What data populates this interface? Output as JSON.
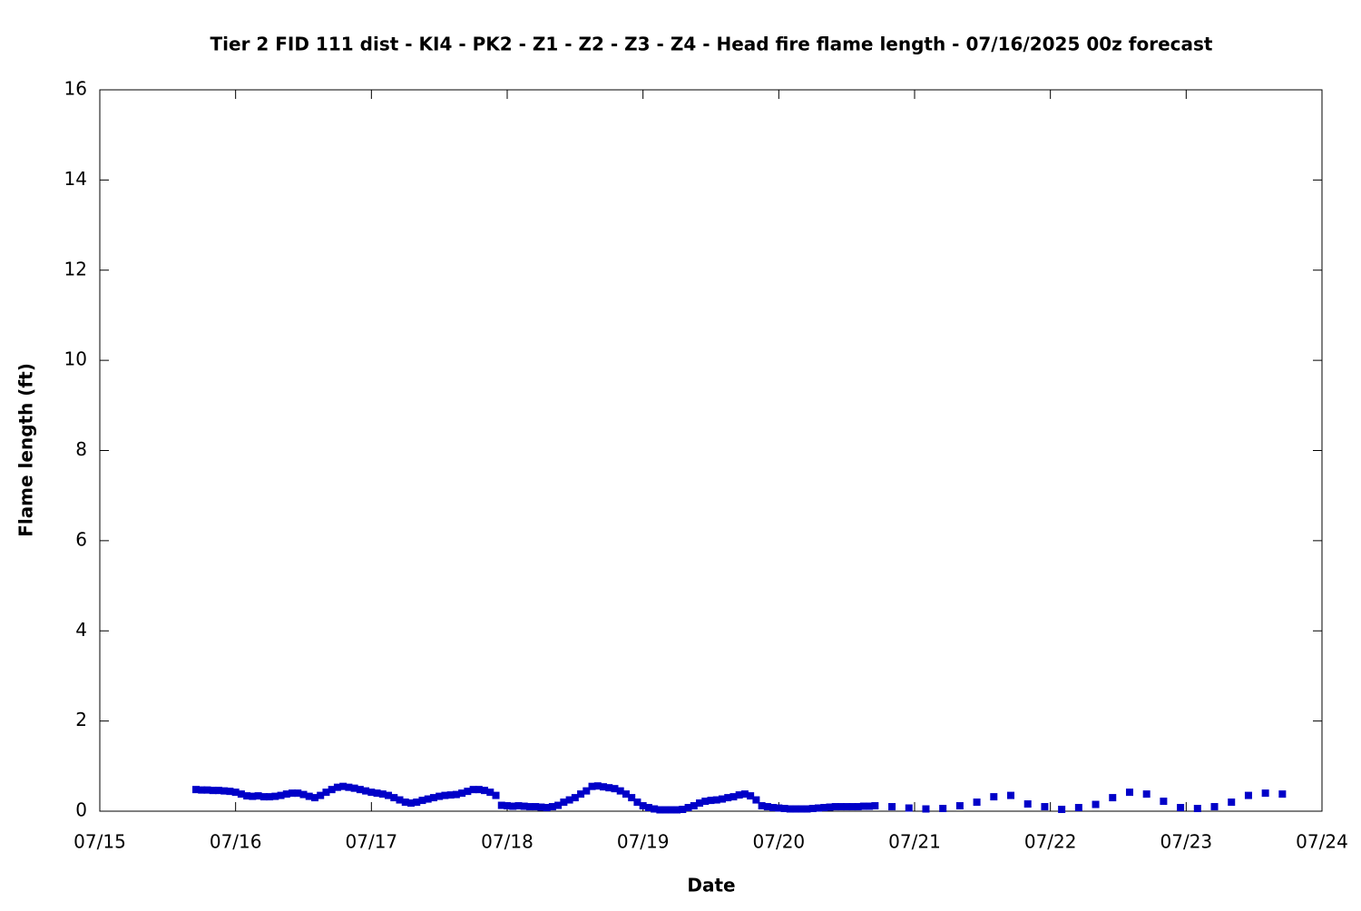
{
  "chart_data": {
    "type": "scatter",
    "title": "Tier 2 FID 111 dist - KI4 - PK2 - Z1 - Z2 - Z3 - Z4 - Head fire flame length - 07/16/2025 00z forecast",
    "xlabel": "Date",
    "ylabel": "Flame length (ft)",
    "xlim": [
      0,
      216
    ],
    "xticks": [
      {
        "value": 0,
        "label": "07/15"
      },
      {
        "value": 24,
        "label": "07/16"
      },
      {
        "value": 48,
        "label": "07/17"
      },
      {
        "value": 72,
        "label": "07/18"
      },
      {
        "value": 96,
        "label": "07/19"
      },
      {
        "value": 120,
        "label": "07/20"
      },
      {
        "value": 144,
        "label": "07/21"
      },
      {
        "value": 168,
        "label": "07/22"
      },
      {
        "value": 192,
        "label": "07/23"
      },
      {
        "value": 216,
        "label": "07/24"
      }
    ],
    "ylim": [
      0,
      16
    ],
    "yticks": [
      0,
      2,
      4,
      6,
      8,
      10,
      12,
      14,
      16
    ],
    "color": "#0000c8",
    "x": [
      17,
      18,
      19,
      20,
      21,
      22,
      23,
      24,
      25,
      26,
      27,
      28,
      29,
      30,
      31,
      32,
      33,
      34,
      35,
      36,
      37,
      38,
      39,
      40,
      41,
      42,
      43,
      44,
      45,
      46,
      47,
      48,
      49,
      50,
      51,
      52,
      53,
      54,
      55,
      56,
      57,
      58,
      59,
      60,
      61,
      62,
      63,
      64,
      65,
      66,
      67,
      68,
      69,
      70,
      71,
      72,
      73,
      74,
      75,
      76,
      77,
      78,
      79,
      80,
      81,
      82,
      83,
      84,
      85,
      86,
      87,
      88,
      89,
      90,
      91,
      92,
      93,
      94,
      95,
      96,
      97,
      98,
      99,
      100,
      101,
      102,
      103,
      104,
      105,
      106,
      107,
      108,
      109,
      110,
      111,
      112,
      113,
      114,
      115,
      116,
      117,
      118,
      119,
      120,
      121,
      122,
      123,
      124,
      125,
      126,
      127,
      128,
      129,
      130,
      131,
      132,
      133,
      134,
      135,
      136,
      137,
      140,
      143,
      146,
      149,
      152,
      155,
      158,
      161,
      164,
      167,
      170,
      173,
      176,
      179,
      182,
      185,
      188,
      191,
      194,
      197,
      200,
      203,
      206,
      209
    ],
    "values": [
      0.48,
      0.47,
      0.47,
      0.46,
      0.46,
      0.45,
      0.44,
      0.42,
      0.38,
      0.34,
      0.33,
      0.34,
      0.32,
      0.32,
      0.33,
      0.35,
      0.38,
      0.4,
      0.4,
      0.37,
      0.33,
      0.3,
      0.35,
      0.42,
      0.48,
      0.53,
      0.55,
      0.53,
      0.51,
      0.48,
      0.45,
      0.42,
      0.4,
      0.38,
      0.35,
      0.3,
      0.25,
      0.2,
      0.18,
      0.2,
      0.24,
      0.27,
      0.3,
      0.33,
      0.35,
      0.36,
      0.37,
      0.4,
      0.44,
      0.48,
      0.48,
      0.46,
      0.42,
      0.35,
      0.13,
      0.12,
      0.11,
      0.12,
      0.11,
      0.1,
      0.1,
      0.09,
      0.08,
      0.1,
      0.13,
      0.2,
      0.25,
      0.3,
      0.38,
      0.45,
      0.55,
      0.56,
      0.54,
      0.52,
      0.5,
      0.45,
      0.38,
      0.3,
      0.2,
      0.12,
      0.08,
      0.05,
      0.03,
      0.03,
      0.03,
      0.03,
      0.04,
      0.08,
      0.12,
      0.18,
      0.22,
      0.24,
      0.25,
      0.27,
      0.3,
      0.32,
      0.36,
      0.38,
      0.34,
      0.25,
      0.12,
      0.1,
      0.08,
      0.07,
      0.06,
      0.05,
      0.05,
      0.05,
      0.05,
      0.06,
      0.07,
      0.08,
      0.09,
      0.1,
      0.1,
      0.1,
      0.1,
      0.1,
      0.11,
      0.11,
      0.12,
      0.1,
      0.07,
      0.05,
      0.06,
      0.12,
      0.2,
      0.32,
      0.35,
      0.16,
      0.1,
      0.04,
      0.08,
      0.15,
      0.3,
      0.42,
      0.38,
      0.22,
      0.08,
      0.06,
      0.1,
      0.2,
      0.35,
      0.4,
      0.38
    ]
  }
}
